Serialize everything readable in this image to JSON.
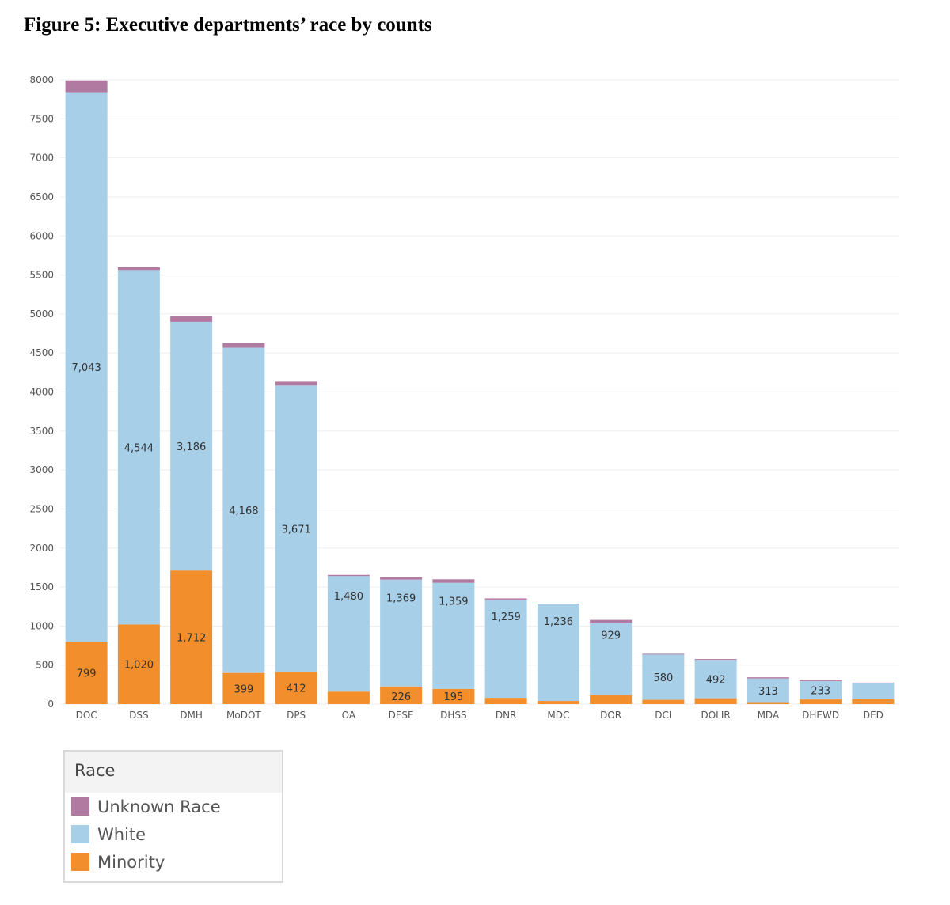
{
  "title": "Figure 5: Executive departments’ race by counts",
  "legend": {
    "title": "Race",
    "items": [
      {
        "label": "Unknown Race",
        "color": "#b07aa1"
      },
      {
        "label": "White",
        "color": "#a8cfe8"
      },
      {
        "label": "Minority",
        "color": "#f28e2b"
      }
    ]
  },
  "chart_data": {
    "type": "bar",
    "stacked": true,
    "title": "Figure 5: Executive departments’ race by counts",
    "xlabel": "",
    "ylabel": "",
    "ylim": [
      0,
      8000
    ],
    "yticks": [
      0,
      500,
      1000,
      1500,
      2000,
      2500,
      3000,
      3500,
      4000,
      4500,
      5000,
      5500,
      6000,
      6500,
      7000,
      7500,
      8000
    ],
    "grid": true,
    "legend_position": "bottom-left",
    "categories": [
      "DOC",
      "DSS",
      "DMH",
      "MoDOT",
      "DPS",
      "OA",
      "DESE",
      "DHSS",
      "DNR",
      "MDC",
      "DOR",
      "DCI",
      "DOLIR",
      "MDA",
      "DHEWD",
      "DED"
    ],
    "series": [
      {
        "name": "Minority",
        "color": "#f28e2b",
        "values": [
          799,
          1020,
          1712,
          399,
          412,
          160,
          226,
          195,
          80,
          40,
          115,
          55,
          75,
          15,
          60,
          65
        ],
        "labels": [
          "799",
          "1,020",
          "1,712",
          "399",
          "412",
          "",
          "226",
          "195",
          "",
          "",
          "",
          "",
          "",
          "",
          "",
          ""
        ]
      },
      {
        "name": "White",
        "color": "#a8cfe8",
        "values": [
          7043,
          4544,
          3186,
          4168,
          3671,
          1480,
          1369,
          1359,
          1259,
          1236,
          929,
          580,
          492,
          313,
          233,
          200
        ],
        "labels": [
          "7,043",
          "4,544",
          "3,186",
          "4,168",
          "3,671",
          "1,480",
          "1,369",
          "1,359",
          "1,259",
          "1,236",
          "929",
          "580",
          "492",
          "313",
          "233",
          ""
        ]
      },
      {
        "name": "Unknown Race",
        "color": "#b07aa1",
        "values": [
          150,
          35,
          70,
          60,
          50,
          15,
          30,
          45,
          15,
          10,
          35,
          10,
          10,
          15,
          10,
          10
        ],
        "labels": [
          "",
          "",
          "",
          "",
          "",
          "",
          "",
          "",
          "",
          "",
          "",
          "",
          "",
          "",
          "",
          ""
        ]
      }
    ]
  }
}
